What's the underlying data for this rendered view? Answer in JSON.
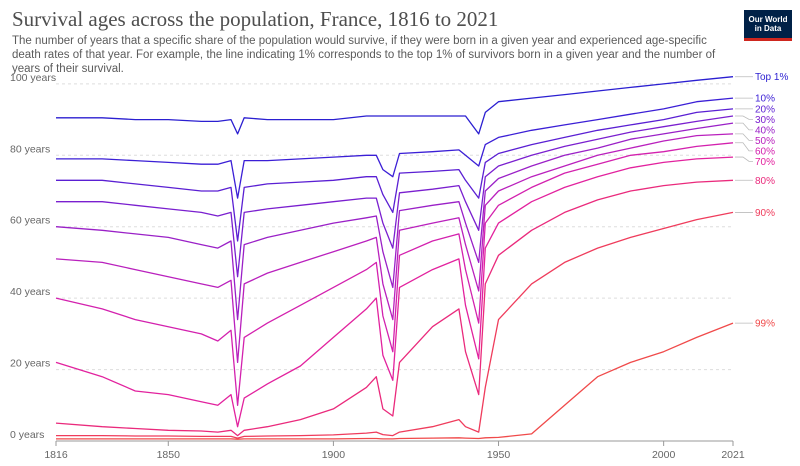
{
  "header": {
    "title": "Survival ages across the population, France, 1816 to 2021",
    "subtitle": "The number of years that a specific share of the population would survive, if they were born in a given year and experienced age-specific death rates of that year. For example, the line indicating 1% corresponds to the top 1% of survivors born in a given year and the number of years of their survival.",
    "logo_line1": "Our World",
    "logo_line2": "in Data",
    "logo_bg": "#002147",
    "logo_accent": "#ce261e"
  },
  "chart_data": {
    "type": "line",
    "title": "Survival ages across the population, France, 1816 to 2021",
    "xlabel": "",
    "ylabel": "",
    "xlim": [
      1816,
      2021
    ],
    "ylim": [
      0,
      105
    ],
    "grid": "horizontal dashed",
    "legend": "right end-of-line labels",
    "x_ticks": [
      1816,
      1850,
      1900,
      1950,
      2000,
      2021
    ],
    "y_ticks": [
      {
        "value": 0,
        "label": "0 years"
      },
      {
        "value": 20,
        "label": "20 years"
      },
      {
        "value": 40,
        "label": "40 years"
      },
      {
        "value": 60,
        "label": "60 years"
      },
      {
        "value": 80,
        "label": "80 years"
      },
      {
        "value": 100,
        "label": "100 years"
      }
    ],
    "x": [
      1816,
      1830,
      1840,
      1850,
      1860,
      1865,
      1869,
      1871,
      1873,
      1880,
      1890,
      1900,
      1910,
      1913,
      1915,
      1918,
      1920,
      1930,
      1938,
      1940,
      1944,
      1946,
      1950,
      1960,
      1970,
      1980,
      1990,
      2000,
      2010,
      2021
    ],
    "series": [
      {
        "name": "Top 1%",
        "color": "#2b1fd1",
        "values": [
          90.5,
          90.5,
          90,
          90,
          89.5,
          89.5,
          90,
          86,
          90.5,
          90,
          90,
          90,
          91,
          91,
          91,
          91,
          91,
          91,
          91,
          91,
          86,
          92,
          95,
          96,
          97,
          98,
          99,
          100,
          101,
          102
        ]
      },
      {
        "name": "10%",
        "color": "#3b1fd6",
        "values": [
          79,
          79,
          78.5,
          78,
          77.5,
          77.5,
          78.5,
          68,
          78.5,
          78.5,
          79,
          79.5,
          80,
          80,
          76,
          74,
          80.5,
          81,
          81.5,
          80,
          77,
          83,
          85,
          87,
          88.5,
          90,
          91.5,
          93,
          95,
          96
        ]
      },
      {
        "name": "20%",
        "color": "#5a1fd3",
        "values": [
          73,
          73,
          72,
          71,
          70,
          70,
          71,
          56,
          71,
          72,
          72.5,
          73,
          74,
          74,
          69,
          64,
          75,
          75.5,
          76,
          73,
          68,
          78,
          80.5,
          83,
          85,
          87,
          88.5,
          90,
          92,
          93
        ]
      },
      {
        "name": "30%",
        "color": "#7a1fcf",
        "values": [
          67,
          67,
          66,
          65,
          64,
          63,
          64,
          46,
          64,
          65,
          66,
          67,
          68,
          68,
          61,
          54,
          69.5,
          70.5,
          71.5,
          67,
          59,
          74,
          77,
          80,
          82.5,
          84.5,
          86.5,
          88,
          89.5,
          91
        ]
      },
      {
        "name": "40%",
        "color": "#9a20c7",
        "values": [
          60,
          59,
          58,
          57,
          55,
          54,
          56,
          34,
          55,
          57,
          59,
          61,
          62.5,
          63,
          53,
          43,
          64.5,
          66,
          67,
          61,
          50,
          70,
          73.5,
          77,
          80,
          82,
          84.5,
          86,
          87.5,
          89
        ]
      },
      {
        "name": "50%",
        "color": "#b920bd",
        "values": [
          51,
          50,
          48,
          46,
          44,
          43,
          45,
          22,
          44,
          47,
          50,
          53,
          56,
          57,
          44,
          34,
          59,
          61,
          62.5,
          55,
          42,
          66,
          70,
          74,
          77,
          80,
          82,
          84,
          85.5,
          86
        ]
      },
      {
        "name": "60%",
        "color": "#d321ae",
        "values": [
          40,
          37,
          34,
          32,
          30,
          28,
          31,
          10,
          29,
          33,
          38,
          43,
          48,
          50,
          35,
          25,
          52,
          56,
          58,
          48,
          33,
          61,
          66,
          71,
          75,
          77.5,
          80,
          81,
          82.5,
          83.5
        ]
      },
      {
        "name": "70%",
        "color": "#e2229e",
        "values": [
          22,
          18,
          14,
          13,
          11,
          10,
          13,
          4,
          12,
          16,
          21,
          29,
          37,
          40,
          24,
          17,
          43,
          48,
          51,
          38,
          23,
          54,
          61,
          67,
          71,
          74,
          76.5,
          78,
          79,
          79.5
        ]
      },
      {
        "name": "80%",
        "color": "#ea2a7c",
        "values": [
          5,
          4,
          3.5,
          3,
          2.8,
          2.5,
          3,
          1.5,
          3,
          4,
          6,
          9,
          15,
          18,
          9,
          7,
          22,
          32,
          37,
          25,
          13,
          44,
          52,
          59,
          64,
          67.5,
          70,
          71.5,
          72.5,
          73
        ]
      },
      {
        "name": "90%",
        "color": "#ef3c5c",
        "values": [
          1.5,
          1.5,
          1.4,
          1.4,
          1.3,
          1.3,
          1.3,
          0.8,
          1.3,
          1.4,
          1.5,
          1.7,
          2.2,
          2.5,
          1.8,
          1.5,
          2.5,
          4,
          6,
          4,
          2.5,
          15,
          34,
          44,
          50,
          54,
          57,
          59.5,
          62,
          64
        ]
      },
      {
        "name": "99%",
        "color": "#f04a4a",
        "values": [
          0.6,
          0.6,
          0.6,
          0.6,
          0.6,
          0.6,
          0.6,
          0.5,
          0.6,
          0.6,
          0.6,
          0.6,
          0.7,
          0.7,
          0.6,
          0.6,
          0.7,
          0.8,
          0.9,
          0.8,
          0.7,
          0.9,
          1,
          2,
          10,
          18,
          22,
          25,
          29,
          33
        ]
      }
    ]
  }
}
